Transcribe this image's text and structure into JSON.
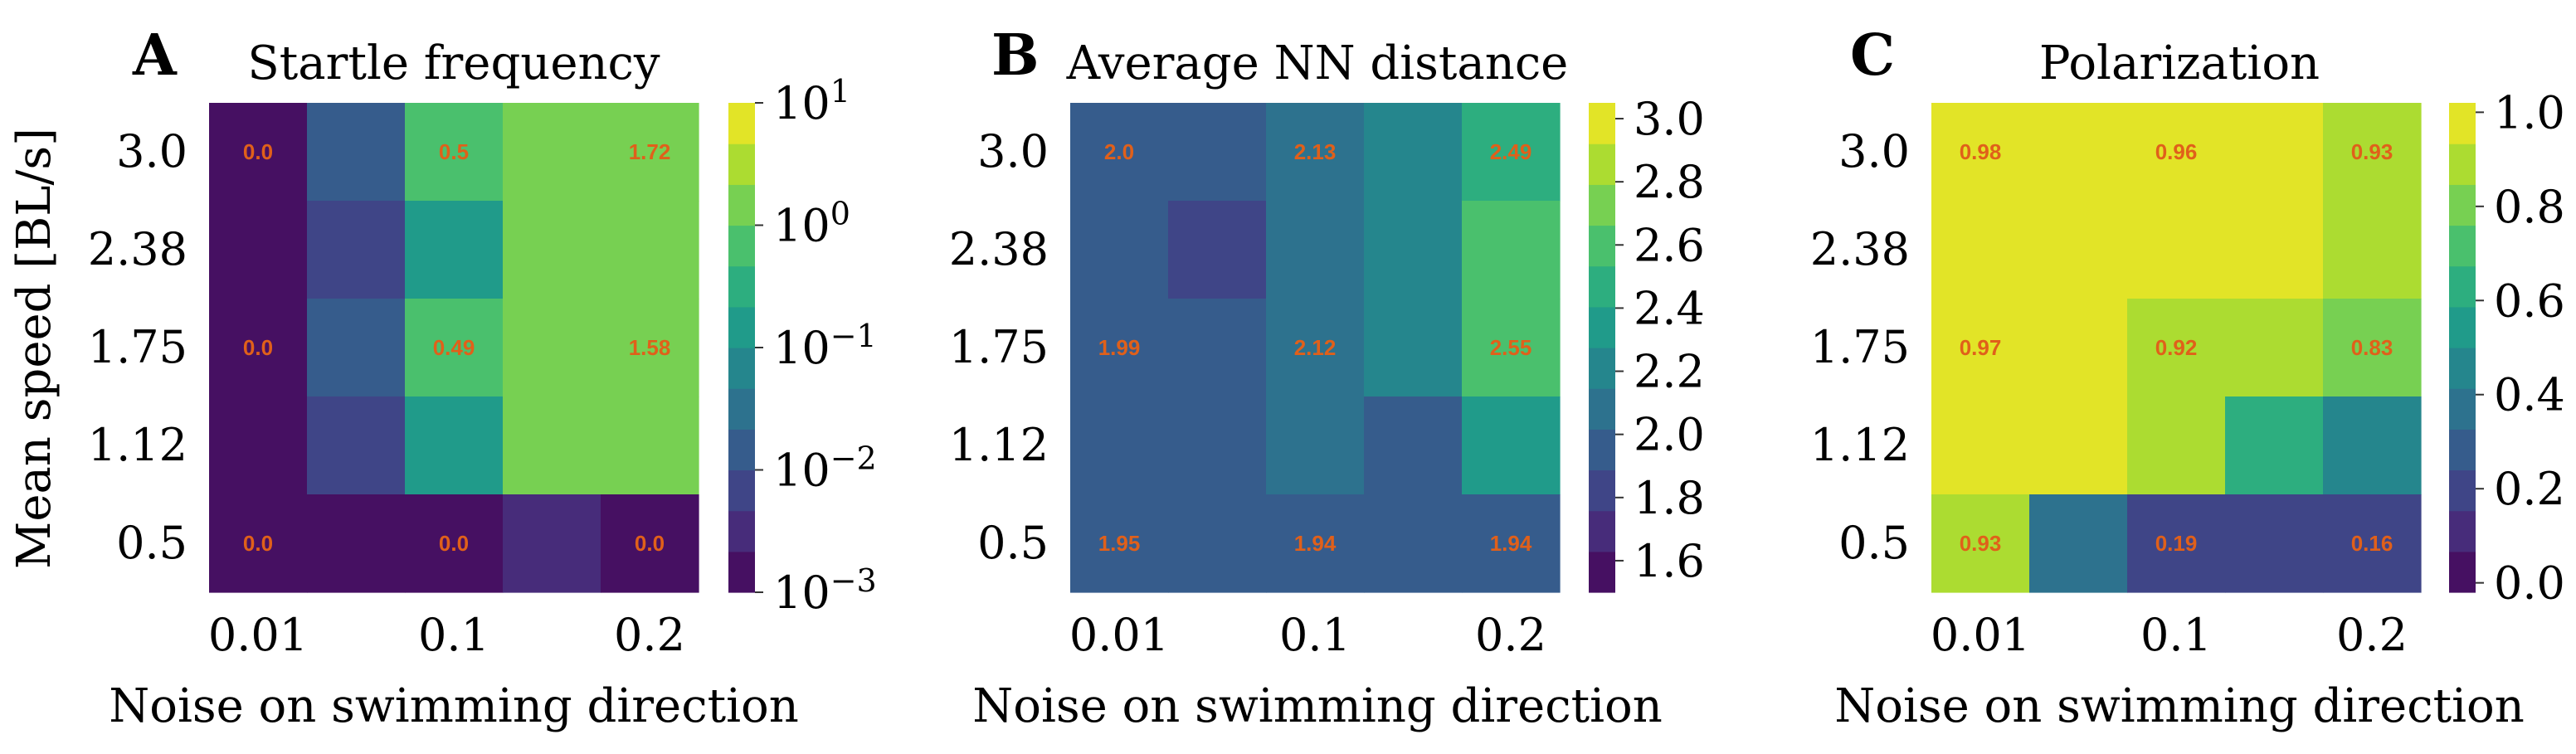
{
  "figure": {
    "shared_xlabel": "Noise on swimming direction",
    "shared_ylabel": "Mean speed [BL/s]"
  },
  "chart_data": [
    {
      "type": "heatmap",
      "panel_letter": "A",
      "title": "Startle frequency",
      "xlabel": "Noise on swimming direction",
      "ylabel": "Mean speed [BL/s]",
      "x_tick_labels": [
        "0.01",
        "0.1",
        "0.2"
      ],
      "y_tick_labels": [
        "3.0",
        "2.38",
        "1.75",
        "1.12",
        "0.5"
      ],
      "n_cols": 5,
      "n_rows": 5,
      "scale": "log",
      "colorbar": {
        "vmin": -3,
        "vmax": 1,
        "levels": 12,
        "ticks": [
          1,
          0,
          -1,
          -2,
          -3
        ],
        "tick_labels": [
          {
            "base": "10",
            "exp": "1"
          },
          {
            "base": "10",
            "exp": "0"
          },
          {
            "base": "10",
            "exp": "−1"
          },
          {
            "base": "10",
            "exp": "−2"
          },
          {
            "base": "10",
            "exp": "−3"
          }
        ]
      },
      "cells_log10": [
        [
          -3.0,
          -1.7,
          -0.3,
          0.24,
          0.24
        ],
        [
          -3.0,
          -2.1,
          -0.75,
          0.2,
          0.2
        ],
        [
          -3.0,
          -1.7,
          -0.31,
          0.2,
          0.2
        ],
        [
          -3.0,
          -2.1,
          -0.75,
          0.2,
          0.2
        ],
        [
          -3.0,
          -3.0,
          -3.0,
          -2.6,
          -3.0
        ]
      ],
      "annotations": [
        {
          "row": 0,
          "col": 0,
          "text": "0.0"
        },
        {
          "row": 0,
          "col": 2,
          "text": "0.5"
        },
        {
          "row": 0,
          "col": 4,
          "text": "1.72"
        },
        {
          "row": 2,
          "col": 0,
          "text": "0.0"
        },
        {
          "row": 2,
          "col": 2,
          "text": "0.49"
        },
        {
          "row": 2,
          "col": 4,
          "text": "1.58"
        },
        {
          "row": 4,
          "col": 0,
          "text": "0.0"
        },
        {
          "row": 4,
          "col": 2,
          "text": "0.0"
        },
        {
          "row": 4,
          "col": 4,
          "text": "0.0"
        }
      ]
    },
    {
      "type": "heatmap",
      "panel_letter": "B",
      "title": "Average NN distance",
      "xlabel": "Noise on swimming direction",
      "ylabel": "",
      "x_tick_labels": [
        "0.01",
        "0.1",
        "0.2"
      ],
      "y_tick_labels": [
        "3.0",
        "2.38",
        "1.75",
        "1.12",
        "0.5"
      ],
      "n_cols": 5,
      "n_rows": 5,
      "scale": "linear",
      "colorbar": {
        "vmin": 1.5,
        "vmax": 3.05,
        "levels": 12,
        "ticks": [
          3.0,
          2.8,
          2.6,
          2.4,
          2.2,
          2.0,
          1.8,
          1.6
        ],
        "tick_labels": [
          "3.0",
          "2.8",
          "2.6",
          "2.4",
          "2.2",
          "2.0",
          "1.8",
          "1.6"
        ]
      },
      "cells": [
        [
          2.0,
          2.0,
          2.13,
          2.27,
          2.49
        ],
        [
          2.0,
          1.87,
          2.13,
          2.27,
          2.55
        ],
        [
          1.99,
          2.0,
          2.12,
          2.27,
          2.55
        ],
        [
          1.95,
          1.95,
          2.12,
          2.0,
          2.4
        ],
        [
          1.95,
          1.95,
          1.94,
          1.94,
          1.94
        ]
      ],
      "annotations": [
        {
          "row": 0,
          "col": 0,
          "text": "2.0"
        },
        {
          "row": 0,
          "col": 2,
          "text": "2.13"
        },
        {
          "row": 0,
          "col": 4,
          "text": "2.49"
        },
        {
          "row": 2,
          "col": 0,
          "text": "1.99"
        },
        {
          "row": 2,
          "col": 2,
          "text": "2.12"
        },
        {
          "row": 2,
          "col": 4,
          "text": "2.55"
        },
        {
          "row": 4,
          "col": 0,
          "text": "1.95"
        },
        {
          "row": 4,
          "col": 2,
          "text": "1.94"
        },
        {
          "row": 4,
          "col": 4,
          "text": "1.94"
        }
      ]
    },
    {
      "type": "heatmap",
      "panel_letter": "C",
      "title": "Polarization",
      "xlabel": "Noise on swimming direction",
      "ylabel": "",
      "x_tick_labels": [
        "0.01",
        "0.1",
        "0.2"
      ],
      "y_tick_labels": [
        "3.0",
        "2.38",
        "1.75",
        "1.12",
        "0.5"
      ],
      "n_cols": 5,
      "n_rows": 5,
      "scale": "linear",
      "colorbar": {
        "vmin": -0.02,
        "vmax": 1.02,
        "levels": 12,
        "ticks": [
          1.0,
          0.8,
          0.6,
          0.4,
          0.2,
          0.0
        ],
        "tick_labels": [
          "1.0",
          "0.8",
          "0.6",
          "0.4",
          "0.2",
          "0.0"
        ]
      },
      "cells": [
        [
          0.98,
          0.98,
          0.96,
          0.96,
          0.93
        ],
        [
          0.98,
          0.98,
          0.96,
          0.96,
          0.87
        ],
        [
          0.97,
          0.97,
          0.92,
          0.87,
          0.83
        ],
        [
          0.97,
          0.97,
          0.86,
          0.67,
          0.42
        ],
        [
          0.93,
          0.35,
          0.19,
          0.19,
          0.16
        ]
      ],
      "annotations": [
        {
          "row": 0,
          "col": 0,
          "text": "0.98"
        },
        {
          "row": 0,
          "col": 2,
          "text": "0.96"
        },
        {
          "row": 0,
          "col": 4,
          "text": "0.93"
        },
        {
          "row": 2,
          "col": 0,
          "text": "0.97"
        },
        {
          "row": 2,
          "col": 2,
          "text": "0.92"
        },
        {
          "row": 2,
          "col": 4,
          "text": "0.83"
        },
        {
          "row": 4,
          "col": 0,
          "text": "0.93"
        },
        {
          "row": 4,
          "col": 2,
          "text": "0.19"
        },
        {
          "row": 4,
          "col": 4,
          "text": "0.16"
        }
      ]
    }
  ],
  "colors": {
    "annotation": "#e0601a",
    "tick_line": "#333333",
    "viridis": [
      "#440154",
      "#482878",
      "#3e4989",
      "#31688e",
      "#26828e",
      "#1f9e89",
      "#35b779",
      "#6ece58",
      "#b5de2b",
      "#fde725"
    ]
  }
}
